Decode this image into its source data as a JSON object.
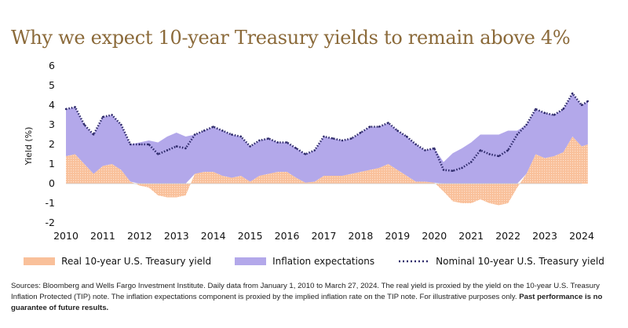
{
  "title": "Why we expect 10-year Treasury yields to remain above 4%",
  "sources_text": "Sources: Bloomberg and Wells Fargo Investment Institute. Daily data from January 1, 2010 to March 27, 2024. The real yield is proxied by the yield on the 10-year U.S. Treasury Inflation Protected (TIP) note. The inflation expectations component is proxied by the implied inflation rate on the TIP note. For illustrative purposes only.",
  "sources_bold": "Past performance is no guarantee of future results.",
  "chart_data": {
    "type": "area",
    "title": "Why we expect 10-year Treasury yields to remain above 4%",
    "xlabel": "",
    "ylabel": "Yield (%)",
    "ylim": [
      -2,
      6
    ],
    "yticks": [
      "6",
      "5",
      "4",
      "3",
      "2",
      "1",
      "0",
      "-1",
      "-2"
    ],
    "xticks": [
      "2010",
      "2011",
      "2012",
      "2013",
      "2014",
      "2015",
      "2016",
      "2017",
      "2018",
      "2019",
      "2020",
      "2021",
      "2022",
      "2023",
      "2024"
    ],
    "grid": false,
    "legend_position": "bottom",
    "colors": {
      "real": "#f9c09a",
      "inflation": "#b3a8ea",
      "nominal": "#2e2a6b",
      "title": "#8b6a3a"
    },
    "x": [
      "2010-01",
      "2010-04",
      "2010-07",
      "2010-10",
      "2011-01",
      "2011-04",
      "2011-07",
      "2011-10",
      "2012-01",
      "2012-04",
      "2012-07",
      "2012-10",
      "2013-01",
      "2013-04",
      "2013-07",
      "2013-10",
      "2014-01",
      "2014-04",
      "2014-07",
      "2014-10",
      "2015-01",
      "2015-04",
      "2015-07",
      "2015-10",
      "2016-01",
      "2016-04",
      "2016-07",
      "2016-10",
      "2017-01",
      "2017-04",
      "2017-07",
      "2017-10",
      "2018-01",
      "2018-04",
      "2018-07",
      "2018-10",
      "2019-01",
      "2019-04",
      "2019-07",
      "2019-10",
      "2020-01",
      "2020-04",
      "2020-07",
      "2020-10",
      "2021-01",
      "2021-04",
      "2021-07",
      "2021-10",
      "2022-01",
      "2022-04",
      "2022-07",
      "2022-10",
      "2023-01",
      "2023-04",
      "2023-07",
      "2023-10",
      "2024-01",
      "2024-03"
    ],
    "series": [
      {
        "name": "Real 10-year U.S. Treasury yield",
        "style": "stacked-area",
        "values": [
          1.4,
          1.5,
          1.0,
          0.5,
          0.9,
          1.0,
          0.7,
          0.1,
          -0.1,
          -0.2,
          -0.6,
          -0.7,
          -0.7,
          -0.6,
          0.5,
          0.6,
          0.6,
          0.4,
          0.3,
          0.4,
          0.1,
          0.4,
          0.5,
          0.6,
          0.6,
          0.3,
          0.05,
          0.1,
          0.4,
          0.4,
          0.4,
          0.5,
          0.6,
          0.7,
          0.8,
          1.0,
          0.7,
          0.4,
          0.1,
          0.1,
          0.05,
          -0.4,
          -0.9,
          -1.0,
          -1.0,
          -0.8,
          -1.0,
          -1.1,
          -1.0,
          -0.2,
          0.5,
          1.5,
          1.3,
          1.4,
          1.6,
          2.4,
          1.9,
          2.0
        ]
      },
      {
        "name": "Inflation expectations",
        "style": "stacked-area",
        "values": [
          2.4,
          2.4,
          2.0,
          2.0,
          2.5,
          2.5,
          2.3,
          1.9,
          2.1,
          2.2,
          2.1,
          2.4,
          2.6,
          2.4,
          2.0,
          2.1,
          2.3,
          2.3,
          2.2,
          2.0,
          1.8,
          1.8,
          1.8,
          1.5,
          1.5,
          1.5,
          1.45,
          1.6,
          2.0,
          1.9,
          1.8,
          1.8,
          2.0,
          2.2,
          2.1,
          2.1,
          2.0,
          2.0,
          1.9,
          1.6,
          1.75,
          1.1,
          1.55,
          1.8,
          2.1,
          2.5,
          2.5,
          2.5,
          2.7,
          2.7,
          2.5,
          2.3,
          2.3,
          2.1,
          2.2,
          2.2,
          2.1,
          2.2
        ]
      },
      {
        "name": "Nominal 10-year U.S. Treasury yield",
        "style": "dotted-line",
        "values": [
          3.8,
          3.9,
          3.0,
          2.5,
          3.4,
          3.5,
          3.0,
          2.0,
          2.0,
          2.0,
          1.5,
          1.7,
          1.9,
          1.8,
          2.5,
          2.7,
          2.9,
          2.7,
          2.5,
          2.4,
          1.9,
          2.2,
          2.3,
          2.1,
          2.1,
          1.8,
          1.5,
          1.7,
          2.4,
          2.3,
          2.2,
          2.3,
          2.6,
          2.9,
          2.9,
          3.1,
          2.7,
          2.4,
          2.0,
          1.7,
          1.8,
          0.7,
          0.65,
          0.8,
          1.1,
          1.7,
          1.5,
          1.4,
          1.7,
          2.5,
          3.0,
          3.8,
          3.6,
          3.5,
          3.8,
          4.6,
          4.0,
          4.2
        ]
      }
    ]
  }
}
